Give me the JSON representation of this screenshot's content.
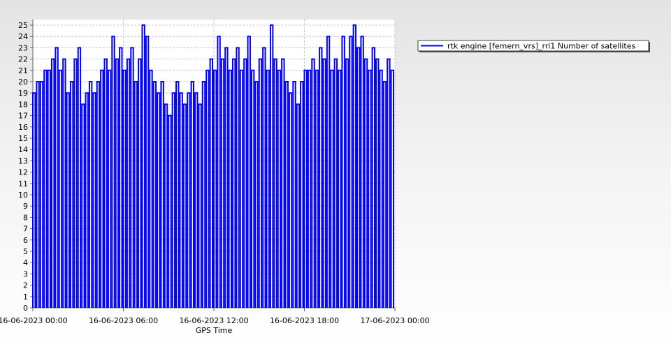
{
  "chart_data": {
    "type": "pulse",
    "x_label": "GPS Time",
    "xlim": [
      "16-06-2023 00:00",
      "17-06-2023 00:00"
    ],
    "xticks": [
      "16-06-2023 00:00",
      "16-06-2023 06:00",
      "16-06-2023 12:00",
      "16-06-2023 18:00",
      "17-06-2023 00:00"
    ],
    "ylim": [
      0,
      25
    ],
    "yticks": [
      0,
      1,
      2,
      3,
      4,
      5,
      6,
      7,
      8,
      9,
      10,
      11,
      12,
      13,
      14,
      15,
      16,
      17,
      18,
      19,
      20,
      21,
      22,
      23,
      24,
      25
    ],
    "grid": true,
    "legend": "top-right",
    "x": [
      "16-06-2023 00:00",
      "16-06-2023 00:15",
      "16-06-2023 00:30",
      "16-06-2023 00:45",
      "16-06-2023 01:00",
      "16-06-2023 01:15",
      "16-06-2023 01:30",
      "16-06-2023 01:45",
      "16-06-2023 02:00",
      "16-06-2023 02:15",
      "16-06-2023 02:30",
      "16-06-2023 02:45",
      "16-06-2023 03:00",
      "16-06-2023 03:15",
      "16-06-2023 03:30",
      "16-06-2023 03:45",
      "16-06-2023 04:00",
      "16-06-2023 04:15",
      "16-06-2023 04:30",
      "16-06-2023 04:45",
      "16-06-2023 05:00",
      "16-06-2023 05:15",
      "16-06-2023 05:30",
      "16-06-2023 05:45",
      "16-06-2023 06:00",
      "16-06-2023 06:15",
      "16-06-2023 06:30",
      "16-06-2023 06:45",
      "16-06-2023 07:00",
      "16-06-2023 07:15",
      "16-06-2023 07:30",
      "16-06-2023 07:45",
      "16-06-2023 08:00",
      "16-06-2023 08:15",
      "16-06-2023 08:30",
      "16-06-2023 08:45",
      "16-06-2023 09:00",
      "16-06-2023 09:15",
      "16-06-2023 09:30",
      "16-06-2023 09:45",
      "16-06-2023 10:00",
      "16-06-2023 10:15",
      "16-06-2023 10:30",
      "16-06-2023 10:45",
      "16-06-2023 11:00",
      "16-06-2023 11:15",
      "16-06-2023 11:30",
      "16-06-2023 11:45",
      "16-06-2023 12:00",
      "16-06-2023 12:15",
      "16-06-2023 12:30",
      "16-06-2023 12:45",
      "16-06-2023 13:00",
      "16-06-2023 13:15",
      "16-06-2023 13:30",
      "16-06-2023 13:45",
      "16-06-2023 14:00",
      "16-06-2023 14:15",
      "16-06-2023 14:30",
      "16-06-2023 14:45",
      "16-06-2023 15:00",
      "16-06-2023 15:15",
      "16-06-2023 15:30",
      "16-06-2023 15:45",
      "16-06-2023 16:00",
      "16-06-2023 16:15",
      "16-06-2023 16:30",
      "16-06-2023 16:45",
      "16-06-2023 17:00",
      "16-06-2023 17:15",
      "16-06-2023 17:30",
      "16-06-2023 17:45",
      "16-06-2023 18:00",
      "16-06-2023 18:15",
      "16-06-2023 18:30",
      "16-06-2023 18:45",
      "16-06-2023 19:00",
      "16-06-2023 19:15",
      "16-06-2023 19:30",
      "16-06-2023 19:45",
      "16-06-2023 20:00",
      "16-06-2023 20:15",
      "16-06-2023 20:30",
      "16-06-2023 20:45",
      "16-06-2023 21:00",
      "16-06-2023 21:15",
      "16-06-2023 21:30",
      "16-06-2023 21:45",
      "16-06-2023 22:00",
      "16-06-2023 22:15",
      "16-06-2023 22:30",
      "16-06-2023 22:45",
      "16-06-2023 23:00",
      "16-06-2023 23:15",
      "16-06-2023 23:30",
      "16-06-2023 23:45"
    ],
    "series": [
      {
        "name": "rtk engine [femern_vrs]_rri1 Number of satellites",
        "color": "#0000ff",
        "values": [
          19,
          20,
          20,
          21,
          21,
          22,
          23,
          21,
          22,
          19,
          20,
          22,
          23,
          18,
          19,
          20,
          19,
          20,
          21,
          22,
          21,
          24,
          22,
          23,
          21,
          22,
          23,
          20,
          22,
          25,
          24,
          21,
          20,
          19,
          20,
          18,
          17,
          19,
          20,
          19,
          18,
          19,
          20,
          19,
          18,
          20,
          21,
          22,
          21,
          24,
          22,
          23,
          21,
          22,
          23,
          21,
          22,
          24,
          21,
          20,
          22,
          23,
          21,
          25,
          22,
          21,
          22,
          20,
          19,
          20,
          18,
          20,
          21,
          21,
          22,
          21,
          23,
          22,
          24,
          21,
          22,
          21,
          24,
          22,
          24,
          25,
          23,
          24,
          22,
          21,
          23,
          22,
          21,
          20,
          22,
          21
        ]
      }
    ]
  }
}
